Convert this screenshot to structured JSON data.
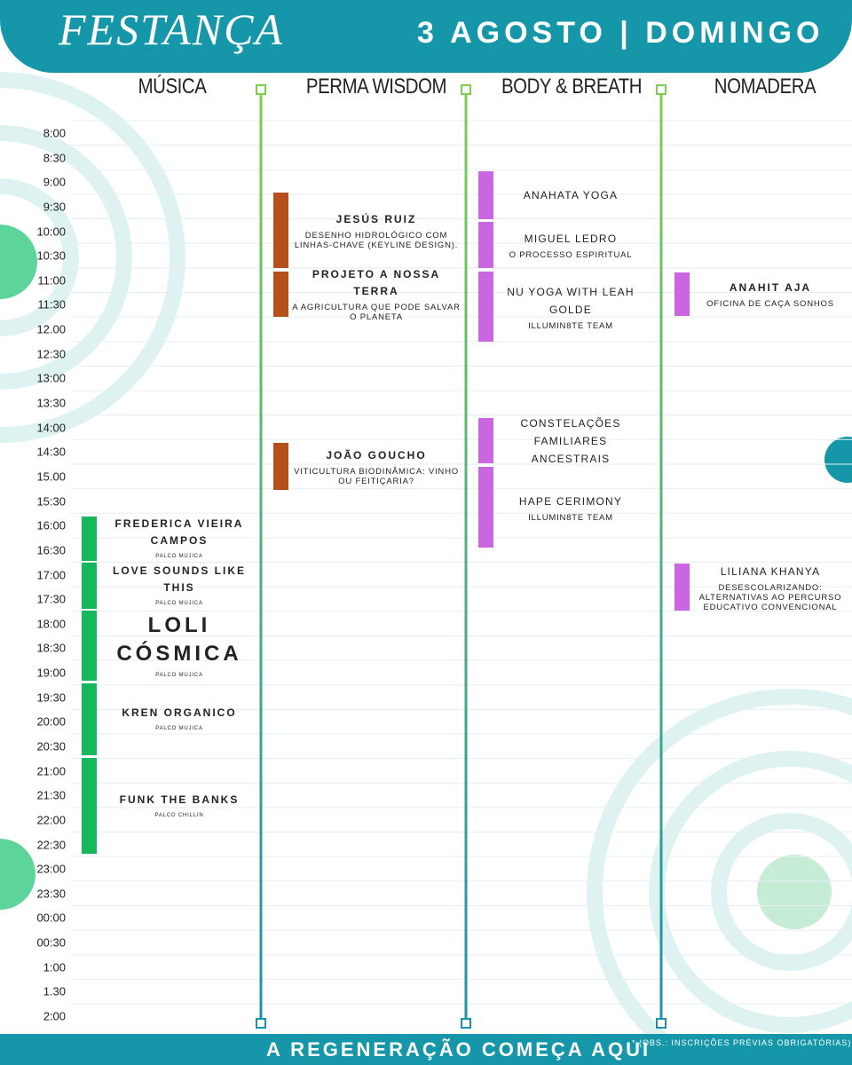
{
  "header": {
    "logo": "FESTANÇA",
    "date": "3 AGOSTO | DOMINGO"
  },
  "times": [
    "8:00",
    "8:30",
    "9:00",
    "9:30",
    "10:00",
    "10:30",
    "11:00",
    "11:30",
    "12.00",
    "12:30",
    "13:00",
    "13:30",
    "14:00",
    "14:30",
    "15.00",
    "15:30",
    "16:00",
    "16:30",
    "17:00",
    "17:30",
    "18:00",
    "18:30",
    "19:00",
    "19:30",
    "20:00",
    "20:30",
    "21:00",
    "21:30",
    "22:00",
    "22:30",
    "23:00",
    "23:30",
    "00:00",
    "00:30",
    "1:00",
    "1.30",
    "2:00"
  ],
  "columns": [
    {
      "name": "MÚSICA",
      "events": [
        {
          "title": "FREDERICA VIEIRA CAMPOS",
          "detail": "PALCO MUJICA"
        },
        {
          "title": "LOVE SOUNDS LIKE THIS",
          "detail": "PALCO MUJICA"
        },
        {
          "title": "LOLI CÓSMICA",
          "detail": "PALCO MUJICA"
        },
        {
          "title": "KREN ORGANICO",
          "detail": "PALCO MUJICA"
        },
        {
          "title": "FUNK THE BANKS",
          "detail": "PALCO CHILLIN"
        }
      ]
    },
    {
      "name": "PERMA WISDOM",
      "events": [
        {
          "title": "JESÚS RUIZ",
          "detail": "DESENHO HIDROLÓGICO COM LINHAS-CHAVE (KEYLINE DESIGN)."
        },
        {
          "title": "PROJETO A NOSSA TERRA",
          "detail": "A AGRICULTURA QUE PODE SALVAR O PLANETA"
        },
        {
          "title": "JOÃO GOUCHO",
          "detail": "VITICULTURA BIODINÂMICA: VINHO OU FEITIÇARIA?"
        }
      ]
    },
    {
      "name": "BODY & BREATH",
      "events": [
        {
          "title": "ANAHATA YOGA"
        },
        {
          "title": "MIGUEL LEDRO",
          "detail": "O PROCESSO ESPIRITUAL"
        },
        {
          "title": "NU YOGA WITH LEAH GOLDE",
          "detail": "ILLUMIN8TE TEAM"
        },
        {
          "title": "CONSTELAÇÕES FAMILIARES ANCESTRAIS"
        },
        {
          "title": "HAPE CERIMONY",
          "detail": "ILLUMIN8TE TEAM"
        }
      ]
    },
    {
      "name": "NOMADERA",
      "events": [
        {
          "title": "ANAHIT AJA",
          "detail": "OFICINA DE CAÇA SONHOS"
        },
        {
          "title": "LILIANA KHANYA",
          "detail": "DESESCOLARIZANDO: ALTERNATIVAS AO PERCURSO EDUCATIVO CONVENCIONAL"
        }
      ]
    }
  ],
  "footer": {
    "tagline": "A REGENERAÇÃO COMEÇA AQUI",
    "note": "* (OBS.: INSCRIÇÕES PRÉVIAS OBRIGATÓRIAS)"
  }
}
